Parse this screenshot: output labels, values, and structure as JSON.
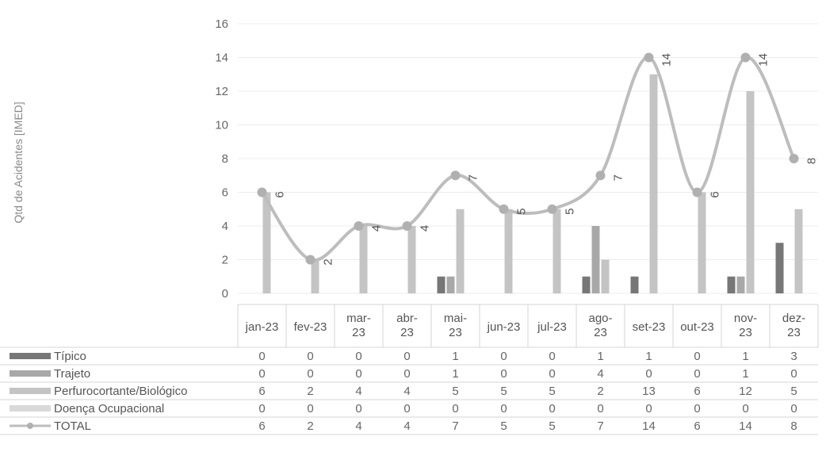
{
  "chart_data": {
    "type": "bar",
    "ylabel": "Qtd de Acidentes [IMED]",
    "ylim": [
      0,
      16
    ],
    "yticks": [
      0,
      2,
      4,
      6,
      8,
      10,
      12,
      14,
      16
    ],
    "categories": [
      "jan-23",
      "fev-23",
      "mar-23",
      "abr-23",
      "mai-23",
      "jun-23",
      "jul-23",
      "ago-23",
      "set-23",
      "out-23",
      "nov-23",
      "dez-23"
    ],
    "category_labels": [
      [
        "jan-23"
      ],
      [
        "fev-23"
      ],
      [
        "mar-",
        "23"
      ],
      [
        "abr-",
        "23"
      ],
      [
        "mai-",
        "23"
      ],
      [
        "jun-23"
      ],
      [
        "jul-23"
      ],
      [
        "ago-",
        "23"
      ],
      [
        "set-23"
      ],
      [
        "out-23"
      ],
      [
        "nov-",
        "23"
      ],
      [
        "dez-",
        "23"
      ]
    ],
    "series": [
      {
        "name": "Típico",
        "kind": "bar",
        "color": "#777777",
        "values": [
          0,
          0,
          0,
          0,
          1,
          0,
          0,
          1,
          1,
          0,
          1,
          3
        ]
      },
      {
        "name": "Trajeto",
        "kind": "bar",
        "color": "#a8a8a8",
        "values": [
          0,
          0,
          0,
          0,
          1,
          0,
          0,
          4,
          0,
          0,
          1,
          0
        ]
      },
      {
        "name": "Perfurocortante/Biológico",
        "kind": "bar",
        "color": "#c4c4c4",
        "values": [
          6,
          2,
          4,
          4,
          5,
          5,
          5,
          2,
          13,
          6,
          12,
          5
        ]
      },
      {
        "name": "Doença Ocupacional",
        "kind": "bar",
        "color": "#d9d9d9",
        "values": [
          0,
          0,
          0,
          0,
          0,
          0,
          0,
          0,
          0,
          0,
          0,
          0
        ]
      },
      {
        "name": "TOTAL",
        "kind": "line",
        "color": "#bdbdbd",
        "values": [
          6,
          2,
          4,
          4,
          7,
          5,
          5,
          7,
          14,
          6,
          14,
          8
        ]
      }
    ],
    "grid": true,
    "legend": "data-table"
  }
}
